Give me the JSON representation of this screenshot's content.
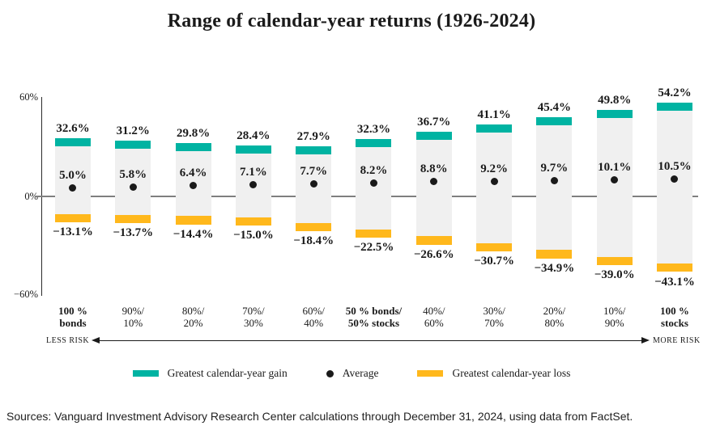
{
  "title": "Range of calendar-year returns (1926-2024)",
  "source_note": "Sources: Vanguard Investment Advisory Research Center calculations through December 31, 2024, using data from FactSet.",
  "risk_axis": {
    "left": "LESS RISK",
    "right": "MORE RISK"
  },
  "legend": {
    "gain": "Greatest calendar-year gain",
    "average": "Average",
    "loss": "Greatest calendar-year loss"
  },
  "colors": {
    "gain": "#00B3A2",
    "loss": "#FFB81C",
    "bar": "#F0F0F0",
    "average_dot": "#1A1A1A",
    "zero_line": "#7F7F7F"
  },
  "chart_data": {
    "type": "bar",
    "title": "Range of calendar-year returns (1926-2024)",
    "xlabel": "",
    "ylabel": "",
    "ylim": [
      -60,
      60
    ],
    "grid": false,
    "legend_position": "bottom",
    "y_ticks": [
      {
        "value": 60,
        "label": "60%"
      },
      {
        "value": 0,
        "label": "0%"
      },
      {
        "value": -60,
        "label": "−60%"
      }
    ],
    "categories": [
      {
        "line1": "100 %",
        "line2": "bonds",
        "bold": true
      },
      {
        "line1": "90%/",
        "line2": "10%",
        "bold": false
      },
      {
        "line1": "80%/",
        "line2": "20%",
        "bold": false
      },
      {
        "line1": "70%/",
        "line2": "30%",
        "bold": false
      },
      {
        "line1": "60%/",
        "line2": "40%",
        "bold": false
      },
      {
        "line1": "50 % bonds/",
        "line2": "50% stocks",
        "bold": true
      },
      {
        "line1": "40%/",
        "line2": "60%",
        "bold": false
      },
      {
        "line1": "30%/",
        "line2": "70%",
        "bold": false
      },
      {
        "line1": "20%/",
        "line2": "80%",
        "bold": false
      },
      {
        "line1": "10%/",
        "line2": "90%",
        "bold": false
      },
      {
        "line1": "100 %",
        "line2": "stocks",
        "bold": true
      }
    ],
    "series": [
      {
        "name": "Greatest calendar-year gain",
        "color": "#00B3A2",
        "values": [
          32.6,
          31.2,
          29.8,
          28.4,
          27.9,
          32.3,
          36.7,
          41.1,
          45.4,
          49.8,
          54.2
        ],
        "labels": [
          "32.6%",
          "31.2%",
          "29.8%",
          "28.4%",
          "27.9%",
          "32.3%",
          "36.7%",
          "41.1%",
          "45.4%",
          "49.8%",
          "54.2%"
        ]
      },
      {
        "name": "Average",
        "color": "#1A1A1A",
        "values": [
          5.0,
          5.8,
          6.4,
          7.1,
          7.7,
          8.2,
          8.8,
          9.2,
          9.7,
          10.1,
          10.5
        ],
        "labels": [
          "5.0%",
          "5.8%",
          "6.4%",
          "7.1%",
          "7.7%",
          "8.2%",
          "8.8%",
          "9.2%",
          "9.7%",
          "10.1%",
          "10.5%"
        ]
      },
      {
        "name": "Greatest calendar-year loss",
        "color": "#FFB81C",
        "values": [
          -13.1,
          -13.7,
          -14.4,
          -15.0,
          -18.4,
          -22.5,
          -26.6,
          -30.7,
          -34.9,
          -39.0,
          -43.1
        ],
        "labels": [
          "−13.1%",
          "−13.7%",
          "−14.4%",
          "−15.0%",
          "−18.4%",
          "−22.5%",
          "−26.6%",
          "−30.7%",
          "−34.9%",
          "−39.0%",
          "−43.1%"
        ]
      }
    ]
  }
}
